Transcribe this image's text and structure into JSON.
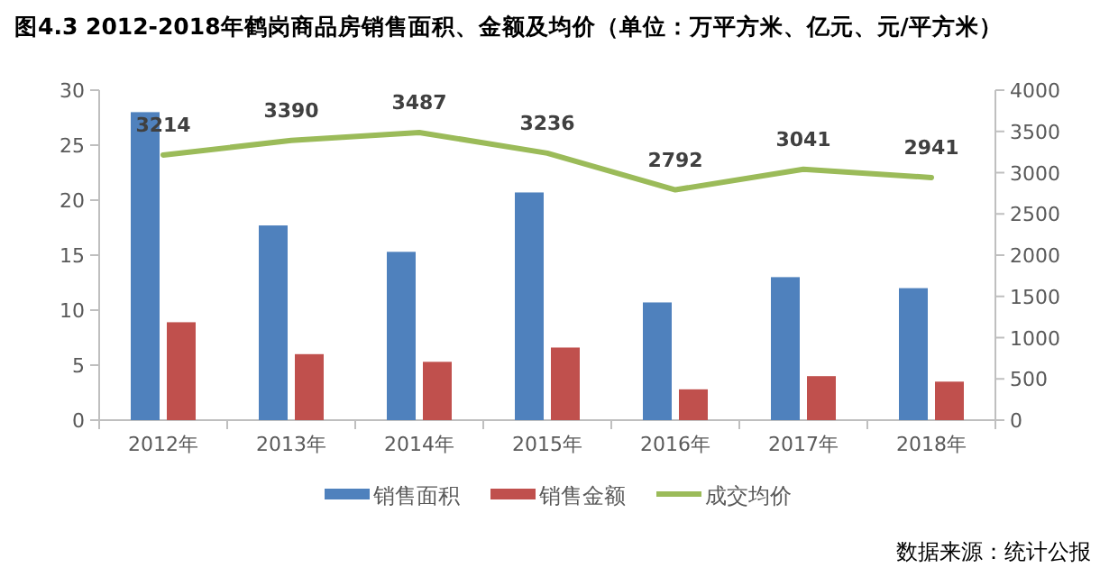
{
  "chart_data": {
    "type": "bar",
    "title": "图4.3  2012-2018年鹤岗商品房销售面积、金额及均价（单位：万平方米、亿元、元/平方米）",
    "categories": [
      "2012年",
      "2013年",
      "2014年",
      "2015年",
      "2016年",
      "2017年",
      "2018年"
    ],
    "series": [
      {
        "name": "销售面积",
        "color": "#4f81bd",
        "values": [
          28.0,
          17.7,
          15.3,
          20.7,
          10.7,
          13.0,
          12.0
        ]
      },
      {
        "name": "销售金额",
        "color": "#c0504d",
        "values": [
          8.9,
          6.0,
          5.3,
          6.6,
          2.8,
          4.0,
          3.5
        ]
      },
      {
        "name": "成交均价",
        "type": "line",
        "axis": "y2",
        "color": "#9bbb59",
        "values": [
          3214,
          3390,
          3487,
          3236,
          2792,
          3041,
          2941
        ],
        "value_labels": [
          "3214",
          "3390",
          "3487",
          "3236",
          "2792",
          "3041",
          "2941"
        ]
      }
    ],
    "ylim": [
      0,
      30
    ],
    "yticks": [
      0,
      5,
      10,
      15,
      20,
      25,
      30
    ],
    "y2lim": [
      0,
      4000
    ],
    "y2ticks": [
      0,
      500,
      1000,
      1500,
      2000,
      2500,
      3000,
      3500,
      4000
    ],
    "legend": "bottom",
    "grid": false,
    "annotations": [
      "数据来源：统计公报"
    ]
  }
}
